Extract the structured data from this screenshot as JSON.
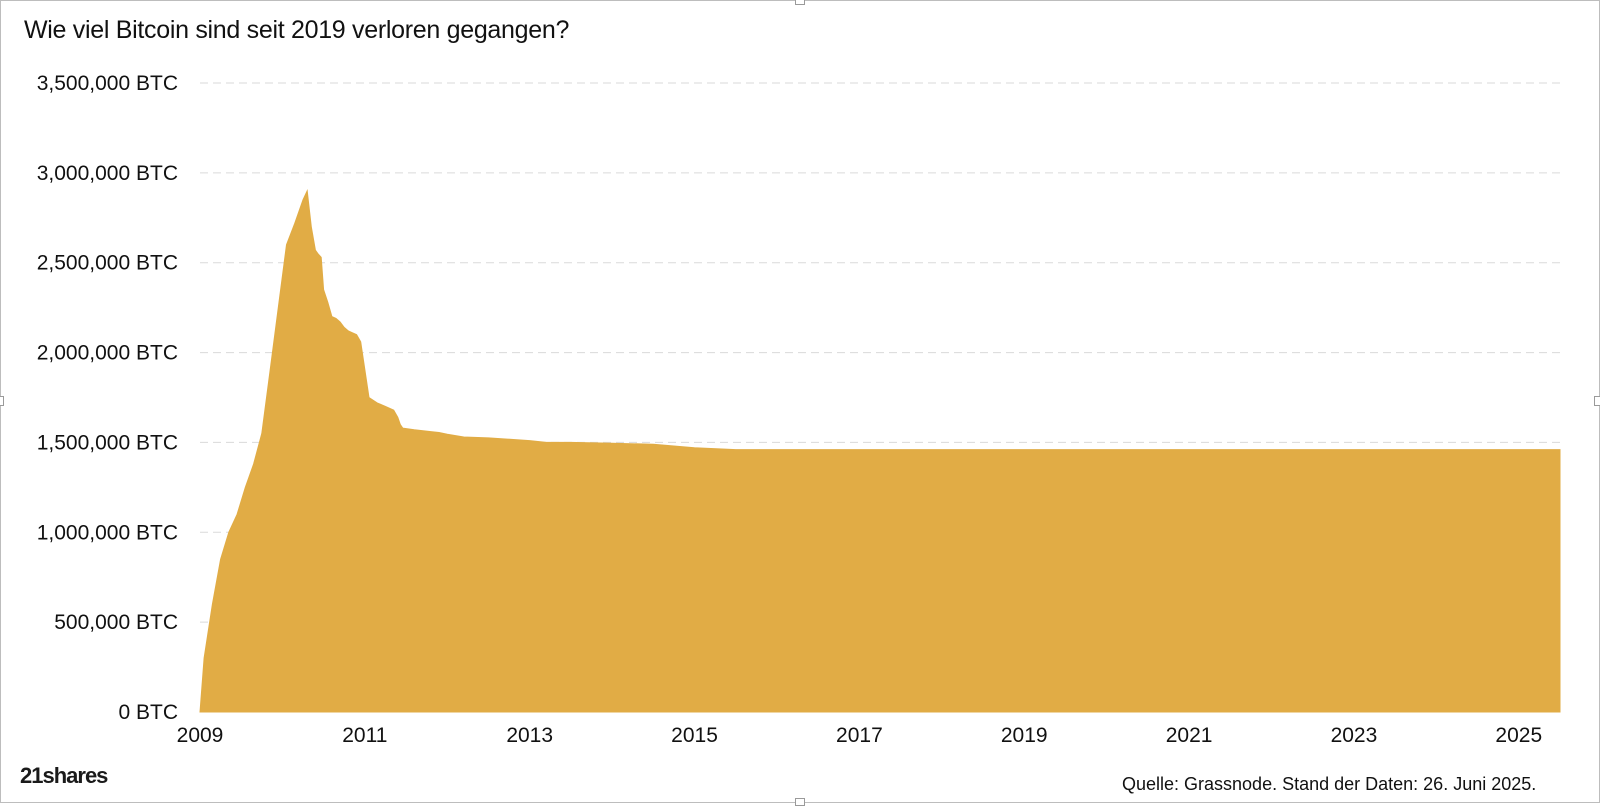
{
  "title": "Wie viel Bitcoin sind seit 2019 verloren gegangen?",
  "logo_text": "21shares",
  "source_note": "Quelle: Grassnode. Stand der Daten: 26. Juni 2025.",
  "colors": {
    "area": "#E1AC45",
    "grid": "#DADADA",
    "text": "#111111"
  },
  "chart_data": {
    "type": "area",
    "title": "Wie viel Bitcoin sind seit 2019 verloren gegangen?",
    "xlabel": "",
    "ylabel": "",
    "x_range": [
      2009.0,
      2025.5
    ],
    "ylim": [
      0,
      3500000
    ],
    "grid": true,
    "legend": "none",
    "x_ticks": [
      "2009",
      "2011",
      "2013",
      "2015",
      "2017",
      "2019",
      "2021",
      "2023",
      "2025"
    ],
    "y_ticks": [
      "0 BTC",
      "500,000 BTC",
      "1,000,000 BTC",
      "1,500,000 BTC",
      "2,000,000 BTC",
      "2,500,000 BTC",
      "3,000,000 BTC",
      "3,500,000 BTC"
    ],
    "series": [
      {
        "x": [
          2009.0,
          2009.05,
          2009.15,
          2009.25,
          2009.35,
          2009.45,
          2009.55,
          2009.65,
          2009.75,
          2009.85,
          2009.95,
          2010.05,
          2010.15,
          2010.25,
          2010.3,
          2010.35,
          2010.4,
          2010.43,
          2010.47,
          2010.5,
          2010.55,
          2010.6,
          2010.65,
          2010.7,
          2010.75,
          2010.8,
          2010.85,
          2010.9,
          2010.95,
          2011.05,
          2011.15,
          2011.25,
          2011.35,
          2011.4,
          2011.43,
          2011.46,
          2011.6,
          2011.8,
          2011.9,
          2012.0,
          2012.2,
          2012.5,
          2013.0,
          2013.2,
          2013.5,
          2014.0,
          2014.5,
          2015.0,
          2015.5,
          2016.0,
          2016.5,
          2017.0,
          2017.5,
          2017.8,
          2018.0,
          2019.0,
          2020.0,
          2021.0,
          2022.0,
          2023.0,
          2024.0,
          2025.0,
          2025.5
        ],
        "y": [
          0,
          300000,
          600000,
          850000,
          1000000,
          1100000,
          1250000,
          1380000,
          1550000,
          1900000,
          2250000,
          2600000,
          2720000,
          2850000,
          2900000,
          2700000,
          2570000,
          2550000,
          2530000,
          2350000,
          2280000,
          2200000,
          2190000,
          2170000,
          2140000,
          2120000,
          2110000,
          2100000,
          2060000,
          1750000,
          1720000,
          1700000,
          1680000,
          1640000,
          1600000,
          1580000,
          1570000,
          1560000,
          1555000,
          1545000,
          1530000,
          1525000,
          1510000,
          1500000,
          1500000,
          1495000,
          1490000,
          1470000,
          1460000,
          1460000,
          1460000,
          1460000,
          1460000,
          1460000,
          1460000,
          1460000,
          1460000,
          1460000,
          1460000,
          1460000,
          1460000,
          1460000,
          1460000
        ]
      }
    ]
  }
}
